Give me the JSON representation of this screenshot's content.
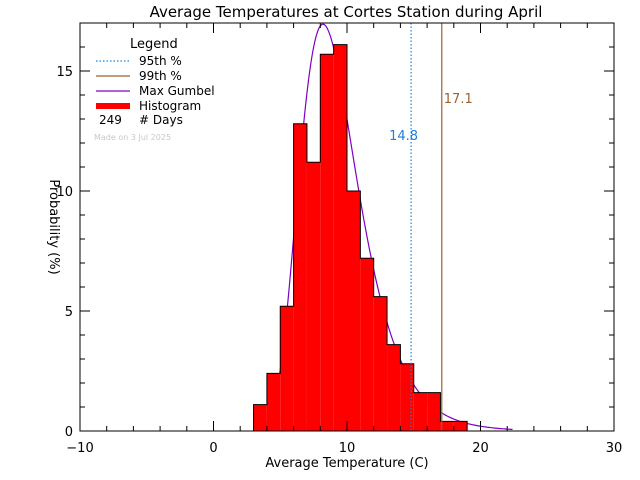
{
  "chart_data": {
    "type": "bar",
    "title": "Average Temperatures at Cortes Station during April",
    "xlabel": "Average Temperature (C)",
    "ylabel": "Probability (%)",
    "xlim": [
      -10,
      30
    ],
    "ylim": [
      0,
      17
    ],
    "x_ticks": [
      "−10",
      "0",
      "10",
      "20",
      "30"
    ],
    "x_tick_values": [
      -10,
      0,
      10,
      20,
      30
    ],
    "y_ticks": [
      "0",
      "5",
      "10",
      "15"
    ],
    "y_tick_values": [
      0,
      5,
      10,
      15
    ],
    "grid": false,
    "histogram": {
      "name": "Histogram",
      "color": "#ff0000",
      "bin_edges": [
        3,
        4,
        5,
        6,
        7,
        8,
        9,
        10,
        11,
        12,
        13,
        14,
        15,
        16,
        17,
        18,
        19
      ],
      "values": [
        1.1,
        2.4,
        5.2,
        12.8,
        11.2,
        15.7,
        16.1,
        10.0,
        7.2,
        5.6,
        3.6,
        2.8,
        1.6,
        1.6,
        0.4,
        0.4
      ]
    },
    "gumbel_fit": {
      "name": "Max Gumbel",
      "color": "#8000c0",
      "mode": 8.2,
      "scale": 2.17
    },
    "percentiles": [
      {
        "name": "95th %",
        "value": 14.8,
        "label": "14.8",
        "color": "#1e7fdc",
        "style": "dotted"
      },
      {
        "name": "99th %",
        "value": 17.1,
        "label": "17.1",
        "color": "#a0622d",
        "style": "solid"
      }
    ],
    "legend": {
      "title": "Legend",
      "position": "top-left",
      "entries": [
        {
          "label": "95th %",
          "style": "dotted",
          "color": "#1e7fdc"
        },
        {
          "label": "99th %",
          "style": "solid",
          "color": "#a0622d"
        },
        {
          "label": "Max Gumbel",
          "style": "solid",
          "color": "#8000c0"
        },
        {
          "label": "Histogram",
          "style": "thick",
          "color": "#ff0000"
        }
      ],
      "days_count": "249",
      "days_label": "# Days"
    },
    "made_on": "Made on 3 Jul 2025"
  }
}
